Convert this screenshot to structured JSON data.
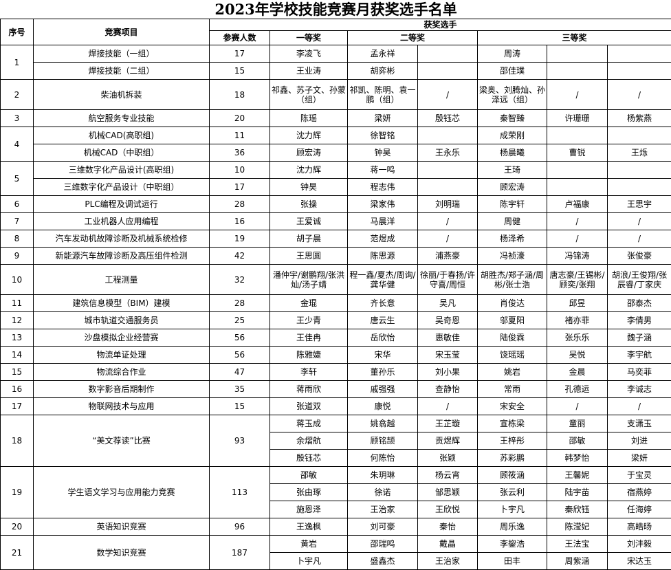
{
  "title": "2023年学校技能竞赛月获奖选手名单",
  "headers": {
    "no": "序号",
    "project": "竞赛项目",
    "winners": "获奖选手",
    "count": "参赛人数",
    "first": "一等奖",
    "second": "二等奖",
    "third": "三等奖"
  },
  "groups": [
    {
      "no": "1",
      "items": [
        {
          "project": "焊接技能（一组）",
          "count": "17",
          "winners": [
            [
              "李凌飞",
              "孟永祥",
              "",
              "周涛",
              "",
              ""
            ]
          ]
        },
        {
          "project": "焊接技能（二组）",
          "count": "15",
          "winners": [
            [
              "王业涛",
              "胡弈彬",
              "",
              "邵佳璞",
              "",
              ""
            ]
          ]
        }
      ]
    },
    {
      "no": "2",
      "items": [
        {
          "project": "柴油机拆装",
          "count": "18",
          "winners": [
            [
              "祁鑫、苏子文、孙蒙（组）",
              "祁凯、陈明、袁一鹏（组）",
              "/",
              "梁奥、刘腾灿、孙泽远（组）",
              "/",
              "/"
            ]
          ]
        }
      ]
    },
    {
      "no": "3",
      "items": [
        {
          "project": "航空服务专业技能",
          "count": "20",
          "winners": [
            [
              "陈瑶",
              "梁妍",
              "殷钰芯",
              "秦智臻",
              "许珊珊",
              "杨紫燕"
            ]
          ]
        }
      ]
    },
    {
      "no": "4",
      "items": [
        {
          "project": "机械CAD(高职组)",
          "count": "11",
          "winners": [
            [
              "沈力辉",
              "徐智铭",
              "",
              "成荣刚",
              "",
              ""
            ]
          ]
        },
        {
          "project": "机械CAD（中职组）",
          "count": "36",
          "winners": [
            [
              "顾宏涛",
              "钟昊",
              "王永乐",
              "杨晨曦",
              "曹锐",
              "王烁"
            ]
          ]
        }
      ]
    },
    {
      "no": "5",
      "items": [
        {
          "project": "三维数字化产品设计(高职组)",
          "count": "10",
          "winners": [
            [
              "沈力辉",
              "蒋一鸣",
              "",
              "王琦",
              "",
              ""
            ]
          ]
        },
        {
          "project": "三维数字化产品设计（中职组）",
          "count": "17",
          "winners": [
            [
              "钟昊",
              "程志伟",
              "",
              "顾宏涛",
              "",
              ""
            ]
          ]
        }
      ]
    },
    {
      "no": "6",
      "items": [
        {
          "project": "PLC编程及调试运行",
          "count": "28",
          "winners": [
            [
              "张操",
              "梁家伟",
              "刘明瑞",
              "陈宇轩",
              "卢福康",
              "王思宇"
            ]
          ]
        }
      ]
    },
    {
      "no": "7",
      "items": [
        {
          "project": "工业机器人应用编程",
          "count": "16",
          "winners": [
            [
              "王爱诚",
              "马晨洋",
              "/",
              "周健",
              "/",
              "/"
            ]
          ]
        }
      ]
    },
    {
      "no": "8",
      "items": [
        {
          "project": "汽车发动机故障诊断及机械系统检修",
          "count": "19",
          "winners": [
            [
              "胡子晨",
              "范煜成",
              "/",
              "杨泽希",
              "/",
              "/"
            ]
          ]
        }
      ]
    },
    {
      "no": "9",
      "items": [
        {
          "project": "新能源汽车故障诊断及高压组件检测",
          "count": "42",
          "winners": [
            [
              "王思圆",
              "陈思源",
              "浦燕豪",
              "冯祯濠",
              "冯锦涛",
              "张俊豪"
            ]
          ]
        }
      ]
    },
    {
      "no": "10",
      "items": [
        {
          "project": "工程测量",
          "count": "32",
          "winners": [
            [
              "潘仲宇/谢鹏翔/张洪灿/汤子靖",
              "程一鑫/夏杰/周询/龚华健",
              "徐丽/于春扬/许守喜/周恒",
              "胡胜杰/郑子涵/周彬/张士浩",
              "唐志豪/王锡彬/顾奕/张翔",
              "胡浪/王俊翔/张辰睿/丁家庆"
            ]
          ]
        }
      ]
    },
    {
      "no": "11",
      "items": [
        {
          "project": "建筑信息模型（BIM）建模",
          "count": "28",
          "winners": [
            [
              "金琨",
              "齐长意",
              "吴凡",
              "肖俊达",
              "邱昱",
              "邵泰杰"
            ]
          ]
        }
      ]
    },
    {
      "no": "12",
      "items": [
        {
          "project": "城市轨道交通服务员",
          "count": "25",
          "winners": [
            [
              "王少青",
              "唐云生",
              "吴奇恩",
              "邬夏阳",
              "褚亦菲",
              "李倩男"
            ]
          ]
        }
      ]
    },
    {
      "no": "13",
      "items": [
        {
          "project": "沙盘模拟企业经营赛",
          "count": "56",
          "winners": [
            [
              "王佳冉",
              "岳欣怡",
              "惠敏佳",
              "陆俊霖",
              "张乐乐",
              "魏子涵"
            ]
          ]
        }
      ]
    },
    {
      "no": "14",
      "items": [
        {
          "project": "物流单证处理",
          "count": "56",
          "winners": [
            [
              "陈雅婕",
              "宋华",
              "宋玉莹",
              "饶瑶瑶",
              "吴悦",
              "李宇航"
            ]
          ]
        }
      ]
    },
    {
      "no": "15",
      "items": [
        {
          "project": "物流综合作业",
          "count": "47",
          "winners": [
            [
              "李轩",
              "董孙乐",
              "刘小果",
              "姚岩",
              "金晨",
              "马奕菲"
            ]
          ]
        }
      ]
    },
    {
      "no": "16",
      "items": [
        {
          "project": "数字影音后期制作",
          "count": "35",
          "winners": [
            [
              "蒋雨欣",
              "戚强强",
              "查静怡",
              "常雨",
              "孔德运",
              "李诚志"
            ]
          ]
        }
      ]
    },
    {
      "no": "17",
      "items": [
        {
          "project": "物联网技术与应用",
          "count": "15",
          "winners": [
            [
              "张道双",
              "康悦",
              "/",
              "宋安全",
              "/",
              "/"
            ]
          ]
        }
      ]
    },
    {
      "no": "18",
      "items": [
        {
          "project": "“美文荐读”比赛",
          "count": "93",
          "winners": [
            [
              "蒋玉成",
              "姚翕越",
              "王芷璇",
              "宣栋梁",
              "童丽",
              "支潇玉"
            ],
            [
              "余熠航",
              "顾铭颉",
              "贡煜辉",
              "王梓彤",
              "邵敏",
              "刘进"
            ],
            [
              "殷钰芯",
              "何陈怡",
              "张颖",
              "苏彩鹏",
              "韩梦怡",
              "梁妍"
            ]
          ]
        }
      ]
    },
    {
      "no": "19",
      "items": [
        {
          "project": "学生语文学习与应用能力竞赛",
          "count": "113",
          "winners": [
            [
              "邵敏",
              "朱玥琳",
              "杨云宵",
              "顾筱涵",
              "王馨妮",
              "于宝灵"
            ],
            [
              "张由琢",
              "徐诺",
              "邹思颖",
              "张云利",
              "陆宇苗",
              "宿燕婷"
            ],
            [
              "施恩泽",
              "王治家",
              "王欣悦",
              "卜宇凡",
              "秦欣钰",
              "任海婷"
            ]
          ]
        }
      ]
    },
    {
      "no": "20",
      "items": [
        {
          "project": "英语知识竞赛",
          "count": "96",
          "winners": [
            [
              "王逸枫",
              "刘可豪",
              "秦怡",
              "周乐逸",
              "陈滢妃",
              "高皓旸"
            ]
          ]
        }
      ]
    },
    {
      "no": "21",
      "items": [
        {
          "project": "数学知识竞赛",
          "count": "187",
          "winners": [
            [
              "黄岩",
              "邵瑞鸣",
              "戴晶",
              "李鋆浩",
              "王法宝",
              "刘沣毅"
            ],
            [
              "卜宇凡",
              "盛鑫杰",
              "王治家",
              "田丰",
              "周紫涵",
              "宋达玉"
            ]
          ]
        }
      ]
    }
  ]
}
